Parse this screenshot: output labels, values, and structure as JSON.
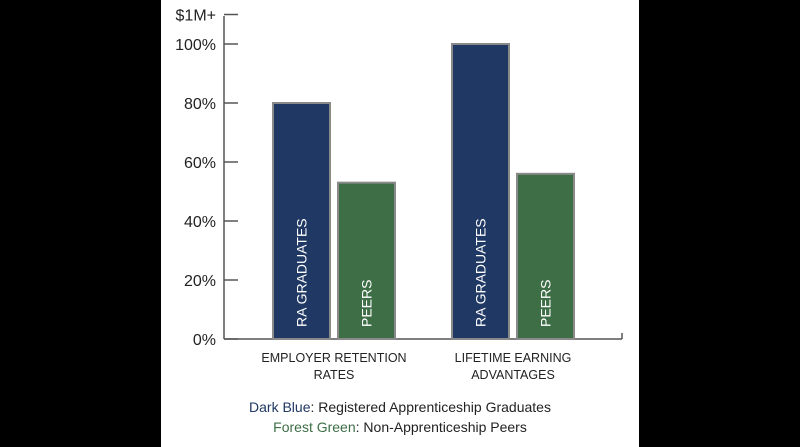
{
  "chart_data": {
    "type": "bar",
    "categories": [
      [
        "EMPLOYER RETENTION",
        "RATES"
      ],
      [
        "LIFETIME EARNING",
        "ADVANTAGES"
      ]
    ],
    "series": [
      {
        "name": "RA GRADUATES",
        "values": [
          80,
          100
        ],
        "color": "#1f3864"
      },
      {
        "name": "PEERS",
        "values": [
          53,
          56
        ],
        "color": "#3d6e46"
      }
    ],
    "y_ticks": [
      "0%",
      "20%",
      "40%",
      "60%",
      "80%",
      "100%",
      "$1M+"
    ],
    "y_tick_values": [
      0,
      20,
      40,
      60,
      80,
      100,
      110
    ],
    "ylim": [
      0,
      110
    ],
    "grid": false,
    "legend": [
      {
        "key": "Dark Blue",
        "text": ": Registered Apprenticeship Graduates",
        "color": "#1f3864"
      },
      {
        "key": "Forest Green",
        "text": ": Non-Apprenticeship Peers",
        "color": "#3d6e46"
      }
    ],
    "legend_placement": "bottom"
  }
}
